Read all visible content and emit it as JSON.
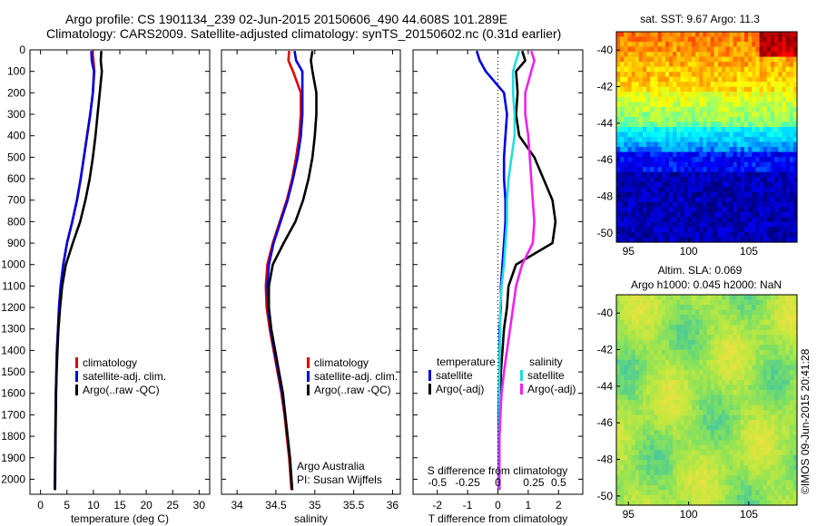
{
  "header": {
    "title_line1": "Argo profile: CS 1901134_239 02-Jun-2015 20150606_490 44.608S 101.289E",
    "title_line2": "Climatology: CARS2009. Satellite-adjusted climatology: synTS_20150602.nc (0.31d earlier)"
  },
  "stamp": "©IMOS 09-Jun-2015 20:41:28",
  "chart_data": [
    {
      "type": "line",
      "id": "temperature",
      "xlabel": "temperature (deg C)",
      "ylabel": "",
      "xlim": [
        -2,
        32
      ],
      "ylim": [
        2070,
        0
      ],
      "xticks": [
        0,
        5,
        10,
        15,
        20,
        25,
        30
      ],
      "yticks": [
        0,
        100,
        200,
        300,
        400,
        500,
        600,
        700,
        800,
        900,
        1000,
        1100,
        1200,
        1300,
        1400,
        1500,
        1600,
        1700,
        1800,
        1900,
        2000
      ],
      "legend": [
        "climatology",
        "satellite-adj. clim.",
        "Argo(..raw -QC)"
      ],
      "legend_position": "lower-right",
      "series": [
        {
          "name": "climatology",
          "color": "#e00000",
          "x": [
            9.8,
            10,
            10.2,
            9.9,
            9.4,
            8.8,
            8.2,
            7.6,
            6.9,
            6.0,
            5.0,
            4.3,
            3.8,
            3.5,
            3.3,
            3.1,
            3.0,
            2.9,
            2.85,
            2.8,
            2.75,
            2.7
          ],
          "y": [
            5,
            50,
            100,
            200,
            300,
            400,
            500,
            600,
            700,
            800,
            900,
            1000,
            1100,
            1200,
            1300,
            1400,
            1500,
            1600,
            1700,
            1800,
            1900,
            2050
          ]
        },
        {
          "name": "satellite-adj. clim.",
          "color": "#0000e0",
          "x": [
            9.6,
            9.7,
            10.1,
            9.9,
            9.4,
            8.8,
            8.2,
            7.6,
            6.9,
            6.0,
            5.0,
            4.3,
            3.8,
            3.5,
            3.3,
            3.1,
            3.0,
            2.9,
            2.85,
            2.8,
            2.75,
            2.7
          ],
          "y": [
            5,
            50,
            100,
            200,
            300,
            400,
            500,
            600,
            700,
            800,
            900,
            1000,
            1100,
            1200,
            1300,
            1400,
            1500,
            1600,
            1700,
            1800,
            1900,
            2050
          ]
        },
        {
          "name": "Argo(..raw -QC)",
          "color": "#000000",
          "x": [
            11.5,
            11.4,
            11.6,
            11.2,
            10.8,
            10.4,
            9.9,
            9.3,
            8.5,
            7.5,
            6.1,
            4.8,
            4.1,
            3.7,
            3.4,
            3.2,
            3.05,
            2.95,
            2.9,
            2.85,
            2.8,
            2.75
          ],
          "y": [
            5,
            50,
            100,
            200,
            300,
            400,
            500,
            600,
            700,
            800,
            900,
            1000,
            1100,
            1200,
            1300,
            1400,
            1500,
            1600,
            1700,
            1800,
            1900,
            2050
          ]
        }
      ]
    },
    {
      "type": "line",
      "id": "salinity",
      "xlabel": "salinity",
      "xlim": [
        33.8,
        36.1
      ],
      "ylim": [
        2070,
        0
      ],
      "xticks": [
        34,
        34.5,
        35,
        35.5,
        36
      ],
      "legend": [
        "climatology",
        "satellite-adj. clim.",
        "Argo(..raw -QC)"
      ],
      "legend_position": "lower-right",
      "annotations": [
        "Argo Australia",
        "PI: Susan Wijffels"
      ],
      "series": [
        {
          "name": "climatology",
          "color": "#e00000",
          "x": [
            34.67,
            34.66,
            34.72,
            34.82,
            34.82,
            34.8,
            34.76,
            34.71,
            34.64,
            34.55,
            34.46,
            34.39,
            34.37,
            34.38,
            34.42,
            34.47,
            34.52,
            34.57,
            34.61,
            34.64,
            34.67,
            34.7
          ],
          "y": [
            5,
            50,
            100,
            200,
            300,
            400,
            500,
            600,
            700,
            800,
            900,
            1000,
            1100,
            1200,
            1300,
            1400,
            1500,
            1600,
            1700,
            1800,
            1900,
            2050
          ]
        },
        {
          "name": "satellite-adj. clim.",
          "color": "#0000e0",
          "x": [
            34.74,
            34.76,
            34.84,
            34.84,
            34.84,
            34.82,
            34.78,
            34.72,
            34.65,
            34.56,
            34.47,
            34.41,
            34.39,
            34.4,
            34.43,
            34.48,
            34.53,
            34.58,
            34.62,
            34.65,
            34.68,
            34.71
          ],
          "y": [
            5,
            50,
            100,
            200,
            300,
            400,
            500,
            600,
            700,
            800,
            900,
            1000,
            1100,
            1200,
            1300,
            1400,
            1500,
            1600,
            1700,
            1800,
            1900,
            2050
          ]
        },
        {
          "name": "Argo(..raw -QC)",
          "color": "#000000",
          "x": [
            34.97,
            34.95,
            34.97,
            35.02,
            35.02,
            35.0,
            34.97,
            34.92,
            34.85,
            34.75,
            34.6,
            34.46,
            34.41,
            34.41,
            34.44,
            34.49,
            34.54,
            34.59,
            34.62,
            34.65,
            34.68,
            34.71
          ],
          "y": [
            5,
            50,
            100,
            200,
            300,
            400,
            500,
            600,
            700,
            800,
            900,
            1000,
            1100,
            1200,
            1300,
            1400,
            1500,
            1600,
            1700,
            1800,
            1900,
            2050
          ]
        }
      ]
    },
    {
      "type": "line",
      "id": "difference",
      "xlabel": "T difference from climatology",
      "xlabel_top": "S difference from climatology",
      "xlim": [
        -2.8,
        2.8
      ],
      "ylim": [
        2070,
        0
      ],
      "xticks": [
        -2,
        -1,
        0,
        1,
        2
      ],
      "xticks_top_labels": [
        "-0.5",
        "-0.25",
        "0",
        "0.25",
        "0.5"
      ],
      "legend_temperature": {
        "title": "temperature",
        "items": [
          "satellite",
          "Argo(-adj)"
        ]
      },
      "legend_salinity": {
        "title": "salinity",
        "items": [
          "satellite",
          "Argo(-adj)"
        ]
      },
      "series": [
        {
          "name": "satellite",
          "color": "#0000e0",
          "x": [
            -0.7,
            -0.6,
            -0.4,
            0.2,
            0.3,
            0.25,
            0.2,
            0.2,
            0.25,
            0.25,
            0.2,
            0.15,
            0.1,
            0.1,
            0.05,
            0.05,
            0.05,
            0.03,
            0.02,
            0.02,
            0.02,
            0.02
          ],
          "y": [
            5,
            50,
            100,
            200,
            300,
            400,
            500,
            600,
            700,
            800,
            900,
            1000,
            1100,
            1200,
            1300,
            1400,
            1500,
            1600,
            1700,
            1800,
            1900,
            2050
          ]
        },
        {
          "name": "Argo(-adj)",
          "color": "#000000",
          "x": [
            0.8,
            0.9,
            0.6,
            0.65,
            0.6,
            0.7,
            1.2,
            1.5,
            1.8,
            1.9,
            1.8,
            0.6,
            0.35,
            0.3,
            0.2,
            0.15,
            0.1,
            0.08,
            0.06,
            0.05,
            0.05,
            0.05
          ],
          "y": [
            5,
            50,
            100,
            200,
            300,
            400,
            500,
            600,
            700,
            800,
            900,
            1000,
            1100,
            1200,
            1300,
            1400,
            1500,
            1600,
            1700,
            1800,
            1900,
            2050
          ]
        },
        {
          "name": "satellite",
          "color": "#22dddd",
          "x": [
            0.7,
            0.6,
            0.5,
            0.5,
            0.55,
            0.55,
            0.45,
            0.35,
            0.3,
            0.3,
            0.25,
            0.2,
            0.12,
            0.08,
            0.07,
            0.06,
            0.05,
            0.04,
            0.04,
            0.03,
            0.03,
            0.03
          ],
          "y": [
            5,
            50,
            100,
            200,
            300,
            400,
            500,
            600,
            700,
            800,
            900,
            1000,
            1100,
            1200,
            1300,
            1400,
            1500,
            1600,
            1700,
            1800,
            1900,
            2050
          ]
        },
        {
          "name": "Argo(-adj)",
          "color": "#ee22ee",
          "x": [
            1.1,
            1.2,
            1.1,
            0.9,
            0.9,
            1.0,
            1.05,
            1.1,
            1.15,
            1.2,
            1.15,
            0.8,
            0.6,
            0.5,
            0.4,
            0.3,
            0.2,
            0.12,
            0.08,
            0.05,
            0.05,
            0.05
          ],
          "y": [
            5,
            50,
            100,
            200,
            300,
            400,
            500,
            600,
            700,
            800,
            900,
            1000,
            1100,
            1200,
            1300,
            1400,
            1500,
            1600,
            1700,
            1800,
            1900,
            2050
          ]
        }
      ]
    },
    {
      "type": "heatmap",
      "id": "sst_map",
      "title": "sat. SST: 9.67  Argo: 11.3",
      "xlim": [
        94,
        109
      ],
      "ylim": [
        -50.5,
        -39
      ],
      "xticks": [
        95,
        100,
        105
      ],
      "yticks": [
        -40,
        -42,
        -44,
        -46,
        -48,
        -50
      ],
      "colorscale": [
        "#00007f",
        "#0000ff",
        "#00a0ff",
        "#00ffff",
        "#80ff80",
        "#ffff00",
        "#ff8000",
        "#ff0000",
        "#7f0000"
      ]
    },
    {
      "type": "heatmap",
      "id": "sla_map",
      "title": "Altim. SLA: 0.069",
      "subtitle": "Argo h1000: 0.045 h2000: NaN",
      "xlim": [
        94,
        109
      ],
      "ylim": [
        -50.5,
        -39
      ],
      "xticks": [
        95,
        100,
        105
      ],
      "yticks": [
        -40,
        -42,
        -44,
        -46,
        -48,
        -50
      ],
      "colorscale": [
        "#1aa0a0",
        "#44c8a0",
        "#80e060",
        "#c0e840",
        "#f0e040",
        "#f0a030"
      ]
    }
  ]
}
